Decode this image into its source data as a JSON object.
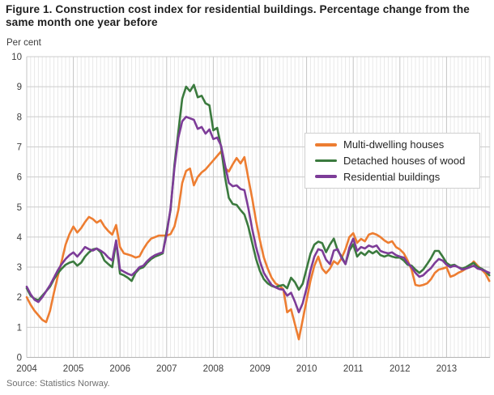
{
  "page": {
    "title": "Figure 1. Construction cost index for residential buildings. Percentage change from the same month one year before",
    "unit_label": "Per cent",
    "source": "Source: Statistics Norway."
  },
  "legend": {
    "items": [
      {
        "label": "Multi-dwelling houses",
        "color": "#ed7d31"
      },
      {
        "label": "Detached houses of wood",
        "color": "#3b7a3e"
      },
      {
        "label": "Residential buildings",
        "color": "#7d3c98"
      }
    ]
  },
  "axes": {
    "y_ticks": [
      "0",
      "1",
      "2",
      "3",
      "4",
      "5",
      "6",
      "7",
      "8",
      "9",
      "10"
    ],
    "x_ticks": [
      "2004",
      "2005",
      "2006",
      "2007",
      "2008",
      "2009",
      "2010",
      "2011",
      "2012",
      "2013"
    ]
  },
  "chart_data": {
    "type": "line",
    "title": "Figure 1. Construction cost index for residential buildings. Percentage change from the same month one year before",
    "xlabel": "",
    "ylabel": "Per cent",
    "ylim": [
      0,
      10
    ],
    "grid": true,
    "legend_position": "center-right",
    "x_frequency": "monthly",
    "x_start": "2004-01",
    "x_end": "2013-12",
    "x_year_labels": [
      "2004",
      "2005",
      "2006",
      "2007",
      "2008",
      "2009",
      "2010",
      "2011",
      "2012",
      "2013"
    ],
    "series": [
      {
        "name": "Multi-dwelling houses",
        "color": "#ed7d31",
        "values": [
          2.0,
          1.75,
          1.55,
          1.4,
          1.25,
          1.17,
          1.55,
          2.15,
          2.7,
          3.2,
          3.75,
          4.1,
          4.35,
          4.15,
          4.3,
          4.5,
          4.67,
          4.6,
          4.48,
          4.56,
          4.35,
          4.2,
          4.08,
          4.4,
          3.67,
          3.46,
          3.42,
          3.38,
          3.32,
          3.36,
          3.6,
          3.8,
          3.95,
          4.0,
          4.05,
          4.05,
          4.05,
          4.1,
          4.35,
          4.9,
          5.8,
          6.2,
          6.28,
          5.72,
          6.0,
          6.15,
          6.25,
          6.4,
          6.55,
          6.7,
          6.85,
          6.3,
          6.18,
          6.42,
          6.63,
          6.45,
          6.66,
          5.96,
          5.29,
          4.53,
          3.89,
          3.32,
          2.95,
          2.65,
          2.46,
          2.38,
          2.27,
          1.5,
          1.6,
          1.1,
          0.6,
          1.25,
          1.9,
          2.55,
          3.05,
          3.35,
          2.95,
          2.8,
          2.95,
          3.2,
          3.1,
          3.3,
          3.6,
          4.0,
          4.13,
          3.81,
          3.94,
          3.86,
          4.08,
          4.13,
          4.08,
          4.0,
          3.89,
          3.81,
          3.86,
          3.67,
          3.59,
          3.46,
          3.22,
          2.92,
          2.41,
          2.38,
          2.41,
          2.46,
          2.6,
          2.81,
          2.92,
          2.95,
          3.0,
          2.68,
          2.73,
          2.81,
          2.87,
          2.95,
          3.05,
          3.19,
          3.05,
          2.92,
          2.79,
          2.54
        ]
      },
      {
        "name": "Detached houses of wood",
        "color": "#3b7a3e",
        "values": [
          2.3,
          2.05,
          1.95,
          1.9,
          2.05,
          2.2,
          2.35,
          2.6,
          2.8,
          2.95,
          3.08,
          3.15,
          3.19,
          3.05,
          3.15,
          3.35,
          3.49,
          3.59,
          3.62,
          3.5,
          3.22,
          3.1,
          3.0,
          3.86,
          2.78,
          2.73,
          2.65,
          2.54,
          2.81,
          2.95,
          3.0,
          3.15,
          3.27,
          3.35,
          3.4,
          3.46,
          4.2,
          4.9,
          6.4,
          7.5,
          8.6,
          9.0,
          8.85,
          9.06,
          8.65,
          8.7,
          8.45,
          8.38,
          7.55,
          7.63,
          7.0,
          6.0,
          5.3,
          5.1,
          5.07,
          4.9,
          4.75,
          4.35,
          3.81,
          3.27,
          2.87,
          2.6,
          2.46,
          2.38,
          2.33,
          2.38,
          2.41,
          2.3,
          2.65,
          2.5,
          2.25,
          2.45,
          2.95,
          3.45,
          3.75,
          3.85,
          3.8,
          3.5,
          3.75,
          3.95,
          3.55,
          3.35,
          3.1,
          3.55,
          3.76,
          3.35,
          3.49,
          3.4,
          3.54,
          3.46,
          3.54,
          3.4,
          3.35,
          3.4,
          3.35,
          3.32,
          3.32,
          3.22,
          3.08,
          3.05,
          2.92,
          2.81,
          2.92,
          3.1,
          3.3,
          3.54,
          3.54,
          3.35,
          3.14,
          3.05,
          3.08,
          3.0,
          2.95,
          3.0,
          3.08,
          3.14,
          3.0,
          2.95,
          2.87,
          2.73
        ]
      },
      {
        "name": "Residential buildings",
        "color": "#7d3c98",
        "values": [
          2.35,
          2.1,
          1.92,
          1.84,
          2.0,
          2.2,
          2.4,
          2.65,
          2.9,
          3.1,
          3.27,
          3.4,
          3.49,
          3.35,
          3.5,
          3.67,
          3.6,
          3.55,
          3.62,
          3.55,
          3.46,
          3.32,
          3.22,
          3.89,
          2.92,
          2.85,
          2.78,
          2.73,
          2.85,
          3.0,
          3.05,
          3.2,
          3.32,
          3.4,
          3.45,
          3.49,
          4.1,
          4.95,
          6.3,
          7.3,
          7.85,
          8.0,
          7.95,
          7.9,
          7.6,
          7.66,
          7.44,
          7.58,
          7.26,
          7.31,
          7.04,
          6.4,
          5.8,
          5.69,
          5.72,
          5.6,
          5.56,
          4.97,
          4.27,
          3.67,
          3.19,
          2.81,
          2.6,
          2.41,
          2.33,
          2.27,
          2.25,
          2.05,
          2.15,
          1.85,
          1.5,
          1.8,
          2.3,
          2.9,
          3.35,
          3.6,
          3.55,
          3.25,
          3.1,
          3.55,
          3.6,
          3.3,
          3.1,
          3.65,
          3.95,
          3.54,
          3.67,
          3.62,
          3.72,
          3.67,
          3.72,
          3.54,
          3.49,
          3.46,
          3.49,
          3.4,
          3.35,
          3.32,
          3.14,
          3.0,
          2.81,
          2.68,
          2.73,
          2.86,
          2.97,
          3.14,
          3.27,
          3.22,
          3.08,
          3.0,
          3.05,
          3.0,
          2.92,
          2.95,
          3.0,
          3.05,
          2.95,
          2.92,
          2.87,
          2.81
        ]
      }
    ]
  }
}
